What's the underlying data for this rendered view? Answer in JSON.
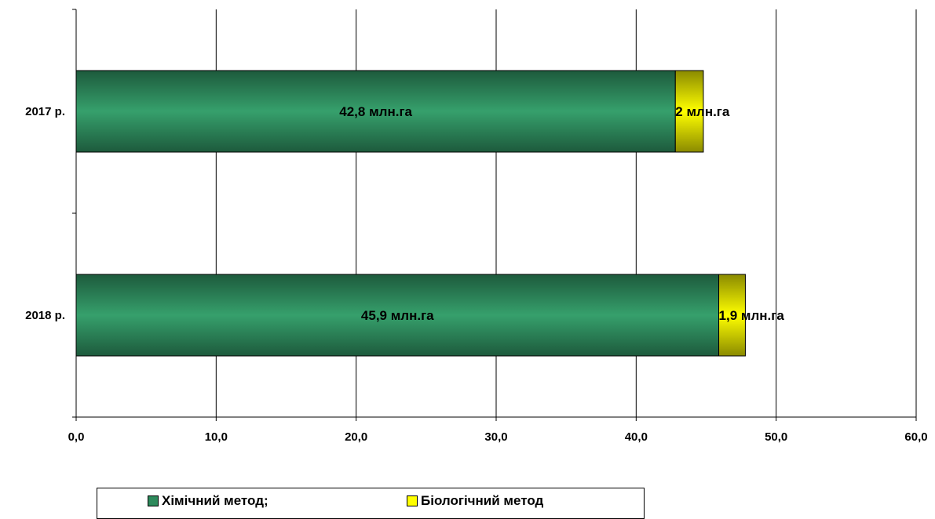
{
  "chart_data": {
    "type": "bar",
    "orientation": "horizontal",
    "stacked": true,
    "categories": [
      "2017 р.",
      "2018 р."
    ],
    "series": [
      {
        "name": "Хімічний метод;",
        "values": [
          42.8,
          45.9
        ],
        "color": "#2e8a5c",
        "labels": [
          "42,8 млн.га",
          "45,9 млн.га"
        ]
      },
      {
        "name": "Біологічний метод",
        "values": [
          2,
          1.9
        ],
        "color": "#ffff00",
        "labels": [
          "2 млн.га",
          "1,9 млн.га"
        ]
      }
    ],
    "xlim": [
      0,
      60
    ],
    "xticks": [
      "0,0",
      "10,0",
      "20,0",
      "30,0",
      "40,0",
      "50,0",
      "60,0"
    ],
    "grid": true,
    "legend_position": "bottom"
  }
}
